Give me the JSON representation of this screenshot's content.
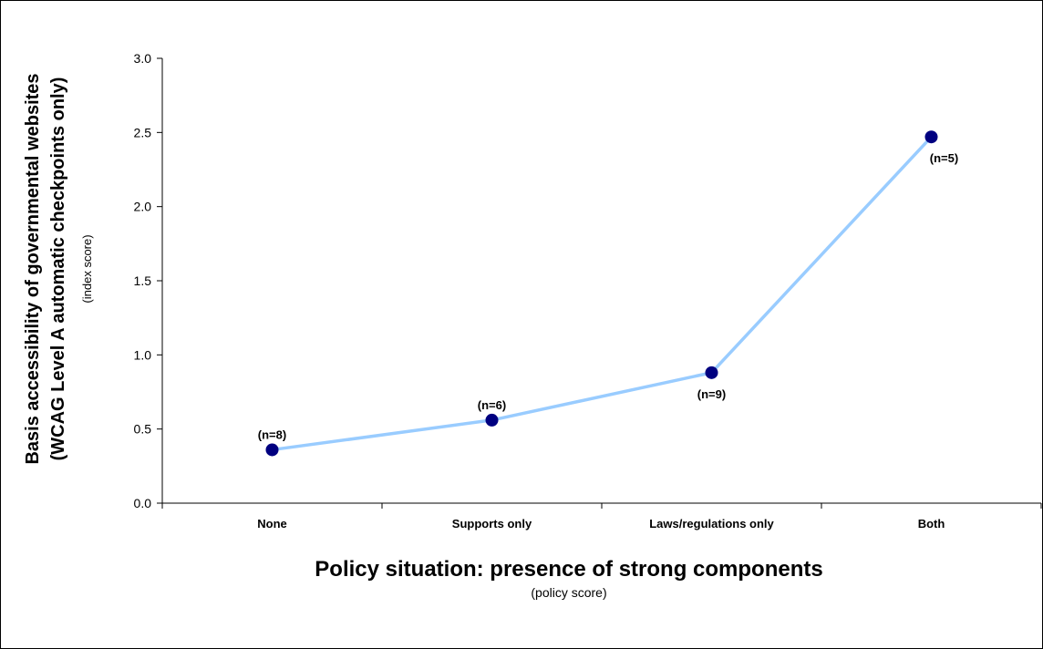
{
  "chart_data": {
    "type": "line",
    "xlabel": "Policy situation: presence of strong components",
    "xlabel_sub": "(policy score)",
    "ylabel_line1": "Basis accessibility of governmental websites",
    "ylabel_line2": "(WCAG Level A automatic checkpoints only)",
    "ylabel_sub": "(index score)",
    "categories": [
      "None",
      "Supports only",
      "Laws/regulations only",
      "Both"
    ],
    "values": [
      0.36,
      0.56,
      0.88,
      2.47
    ],
    "data_labels": [
      "(n=8)",
      "(n=6)",
      "(n=9)",
      "(n=5)"
    ],
    "ylim": [
      0,
      3.0
    ],
    "yticks": [
      "0.0",
      "0.5",
      "1.0",
      "1.5",
      "2.0",
      "2.5",
      "3.0"
    ],
    "line_color": "#99ccff",
    "marker_color": "#000080",
    "grid": false,
    "legend": "none"
  }
}
